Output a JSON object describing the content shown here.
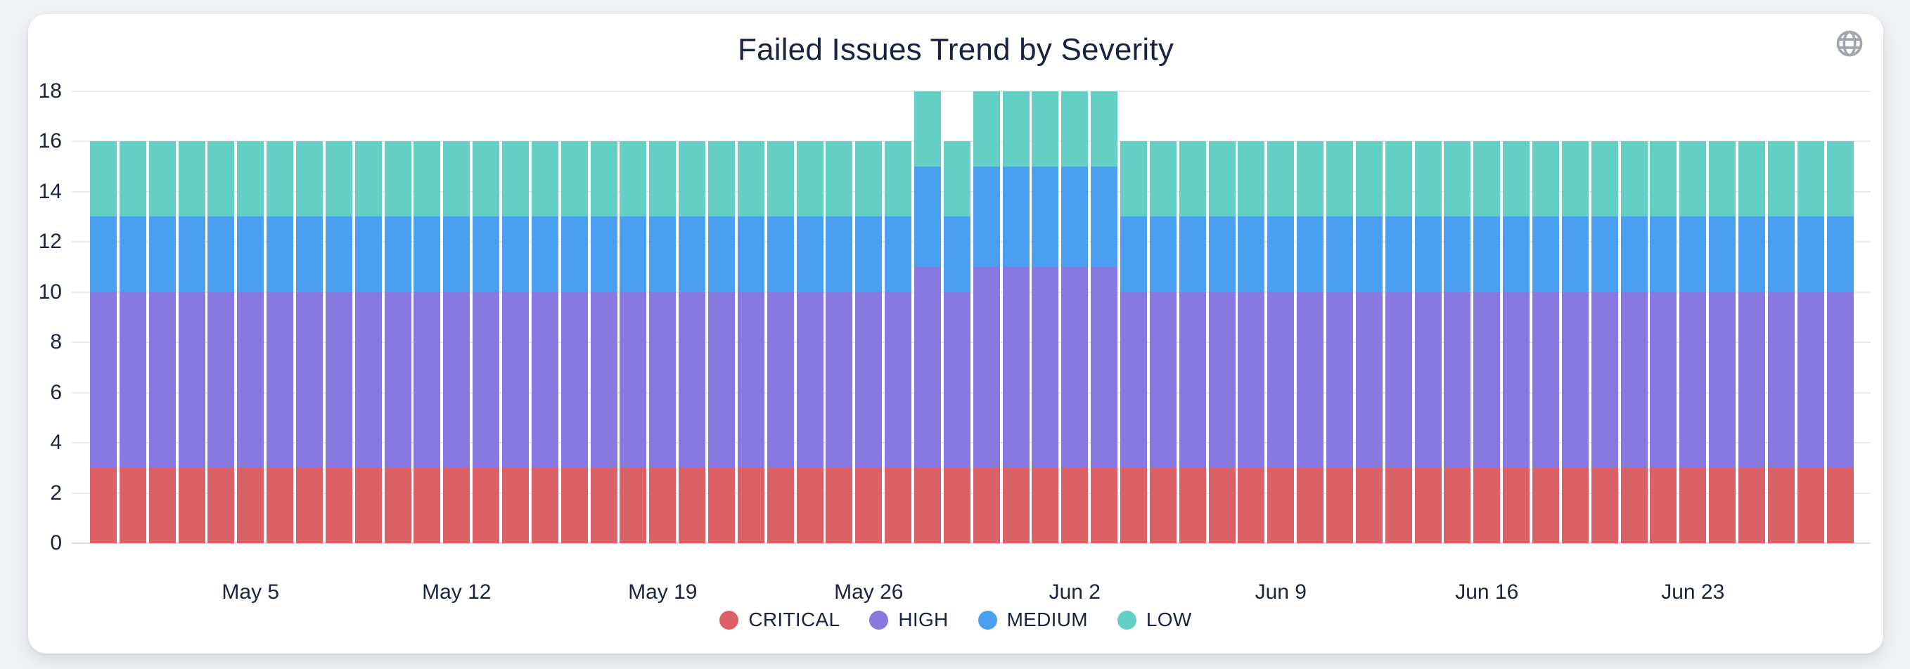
{
  "card": {
    "title": "Failed Issues Trend by Severity"
  },
  "chart_data": {
    "type": "bar",
    "stacked": true,
    "title": "Failed Issues Trend by Severity",
    "xlabel": "",
    "ylabel": "",
    "ylim": [
      0,
      18
    ],
    "y_ticks": [
      0,
      2,
      4,
      6,
      8,
      10,
      12,
      14,
      16,
      18
    ],
    "grid": true,
    "legend_position": "bottom",
    "x": [
      "Apr 30",
      "May 1",
      "May 2",
      "May 3",
      "May 4",
      "May 5",
      "May 6",
      "May 7",
      "May 8",
      "May 9",
      "May 10",
      "May 11",
      "May 12",
      "May 13",
      "May 14",
      "May 15",
      "May 16",
      "May 17",
      "May 18",
      "May 19",
      "May 20",
      "May 21",
      "May 22",
      "May 23",
      "May 24",
      "May 25",
      "May 26",
      "May 27",
      "May 28",
      "May 29",
      "May 30",
      "May 31",
      "Jun 1",
      "Jun 2",
      "Jun 3",
      "Jun 4",
      "Jun 5",
      "Jun 6",
      "Jun 7",
      "Jun 8",
      "Jun 9",
      "Jun 10",
      "Jun 11",
      "Jun 12",
      "Jun 13",
      "Jun 14",
      "Jun 15",
      "Jun 16",
      "Jun 17",
      "Jun 18",
      "Jun 19",
      "Jun 20",
      "Jun 21",
      "Jun 22",
      "Jun 23",
      "Jun 24",
      "Jun 25",
      "Jun 26",
      "Jun 27",
      "Jun 28"
    ],
    "x_tick_labels": [
      "May 5",
      "May 12",
      "May 19",
      "May 26",
      "Jun 2",
      "Jun 9",
      "Jun 16",
      "Jun 23"
    ],
    "x_tick_indices": [
      5,
      12,
      19,
      26,
      33,
      40,
      47,
      54
    ],
    "series": [
      {
        "name": "CRITICAL",
        "color": "#db6166",
        "values": [
          3,
          3,
          3,
          3,
          3,
          3,
          3,
          3,
          3,
          3,
          3,
          3,
          3,
          3,
          3,
          3,
          3,
          3,
          3,
          3,
          3,
          3,
          3,
          3,
          3,
          3,
          3,
          3,
          3,
          3,
          3,
          3,
          3,
          3,
          3,
          3,
          3,
          3,
          3,
          3,
          3,
          3,
          3,
          3,
          3,
          3,
          3,
          3,
          3,
          3,
          3,
          3,
          3,
          3,
          3,
          3,
          3,
          3,
          3,
          3
        ]
      },
      {
        "name": "HIGH",
        "color": "#8779e0",
        "values": [
          7,
          7,
          7,
          7,
          7,
          7,
          7,
          7,
          7,
          7,
          7,
          7,
          7,
          7,
          7,
          7,
          7,
          7,
          7,
          7,
          7,
          7,
          7,
          7,
          7,
          7,
          7,
          7,
          8,
          7,
          8,
          8,
          8,
          8,
          8,
          7,
          7,
          7,
          7,
          7,
          7,
          7,
          7,
          7,
          7,
          7,
          7,
          7,
          7,
          7,
          7,
          7,
          7,
          7,
          7,
          7,
          7,
          7,
          7,
          7
        ]
      },
      {
        "name": "MEDIUM",
        "color": "#4b9ff0",
        "values": [
          3,
          3,
          3,
          3,
          3,
          3,
          3,
          3,
          3,
          3,
          3,
          3,
          3,
          3,
          3,
          3,
          3,
          3,
          3,
          3,
          3,
          3,
          3,
          3,
          3,
          3,
          3,
          3,
          4,
          3,
          4,
          4,
          4,
          4,
          4,
          3,
          3,
          3,
          3,
          3,
          3,
          3,
          3,
          3,
          3,
          3,
          3,
          3,
          3,
          3,
          3,
          3,
          3,
          3,
          3,
          3,
          3,
          3,
          3,
          3
        ]
      },
      {
        "name": "LOW",
        "color": "#63cfc5",
        "values": [
          3,
          3,
          3,
          3,
          3,
          3,
          3,
          3,
          3,
          3,
          3,
          3,
          3,
          3,
          3,
          3,
          3,
          3,
          3,
          3,
          3,
          3,
          3,
          3,
          3,
          3,
          3,
          3,
          3,
          3,
          3,
          3,
          3,
          3,
          3,
          3,
          3,
          3,
          3,
          3,
          3,
          3,
          3,
          3,
          3,
          3,
          3,
          3,
          3,
          3,
          3,
          3,
          3,
          3,
          3,
          3,
          3,
          3,
          3,
          3
        ]
      }
    ]
  }
}
